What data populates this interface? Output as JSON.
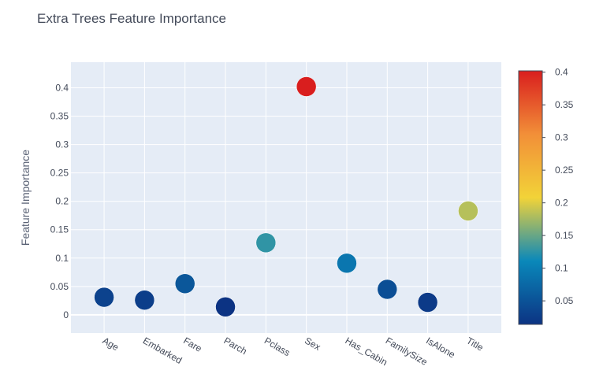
{
  "chart_data": {
    "type": "scatter",
    "title": "Extra Trees Feature Importance",
    "xlabel": "",
    "ylabel": "Feature Importance",
    "categories": [
      "Age",
      "Embarked",
      "Fare",
      "Parch",
      "Pclass",
      "Sex",
      "Has_Cabin",
      "FamilySize",
      "IsAlone",
      "Title"
    ],
    "values": [
      0.031,
      0.026,
      0.055,
      0.014,
      0.127,
      0.402,
      0.091,
      0.045,
      0.022,
      0.183
    ],
    "ylim": [
      -0.032,
      0.445
    ],
    "yticks": [
      0,
      0.05,
      0.1,
      0.15,
      0.2,
      0.25,
      0.3,
      0.35,
      0.4
    ],
    "ytick_labels": [
      "0",
      "0.05",
      "0.1",
      "0.15",
      "0.2",
      "0.25",
      "0.3",
      "0.35",
      "0.4"
    ],
    "colorscale": "Portland",
    "colorbar": {
      "range": [
        0.014,
        0.402
      ],
      "ticks": [
        0.05,
        0.1,
        0.15,
        0.2,
        0.25,
        0.3,
        0.35,
        0.4
      ],
      "tick_labels": [
        "0.05",
        "0.1",
        "0.15",
        "0.2",
        "0.25",
        "0.3",
        "0.35",
        "0.4"
      ]
    },
    "grid": true,
    "plot_background": "#e5ecf6"
  }
}
